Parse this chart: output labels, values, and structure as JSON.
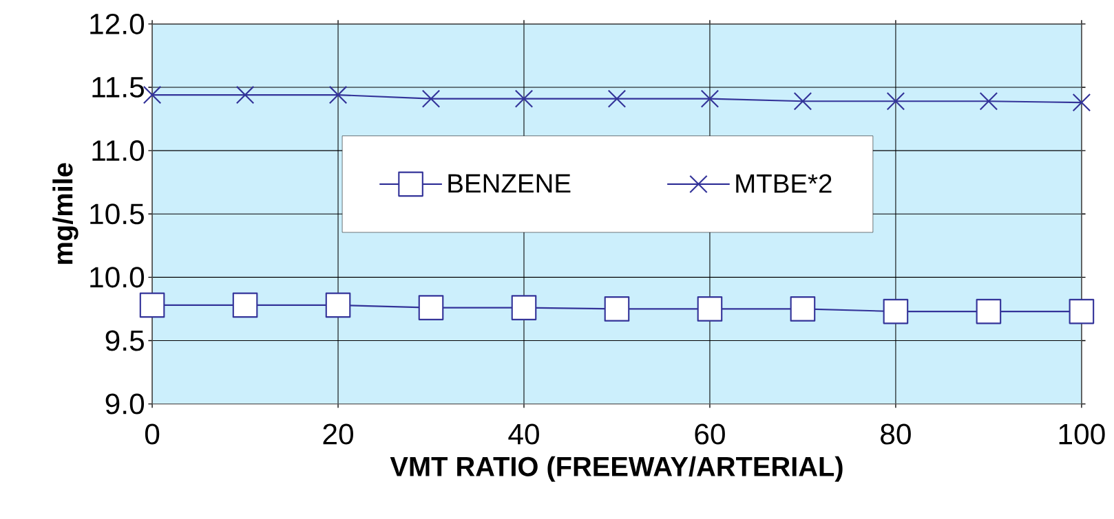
{
  "chart_data": {
    "type": "line",
    "xlabel": "VMT RATIO (FREEWAY/ARTERIAL)",
    "ylabel": "mg/mile",
    "x": [
      0,
      10,
      20,
      30,
      40,
      50,
      60,
      70,
      80,
      90,
      100
    ],
    "series": [
      {
        "name": "BENZENE",
        "color": "#333399",
        "marker": "square",
        "values": [
          9.78,
          9.78,
          9.78,
          9.76,
          9.76,
          9.75,
          9.75,
          9.75,
          9.73,
          9.73,
          9.73
        ]
      },
      {
        "name": "MTBE*2",
        "color": "#333399",
        "marker": "cross",
        "values": [
          11.44,
          11.44,
          11.44,
          11.41,
          11.41,
          11.41,
          11.41,
          11.39,
          11.39,
          11.39,
          11.38
        ]
      }
    ],
    "xlim": [
      0,
      100
    ],
    "xticks": [
      0,
      20,
      40,
      60,
      80,
      100
    ],
    "ylim": [
      9.0,
      12.0
    ],
    "yticks": [
      {
        "value": 9.0,
        "label": "9.0"
      },
      {
        "value": 9.5,
        "label": "9.5"
      },
      {
        "value": 10.0,
        "label": "10.0"
      },
      {
        "value": 10.5,
        "label": "10.5"
      },
      {
        "value": 11.0,
        "label": "11.0"
      },
      {
        "value": 11.5,
        "label": "11.5"
      },
      {
        "value": 12.0,
        "label": "12.0"
      }
    ],
    "grid": true,
    "legend": "top",
    "line_style": "solid"
  }
}
